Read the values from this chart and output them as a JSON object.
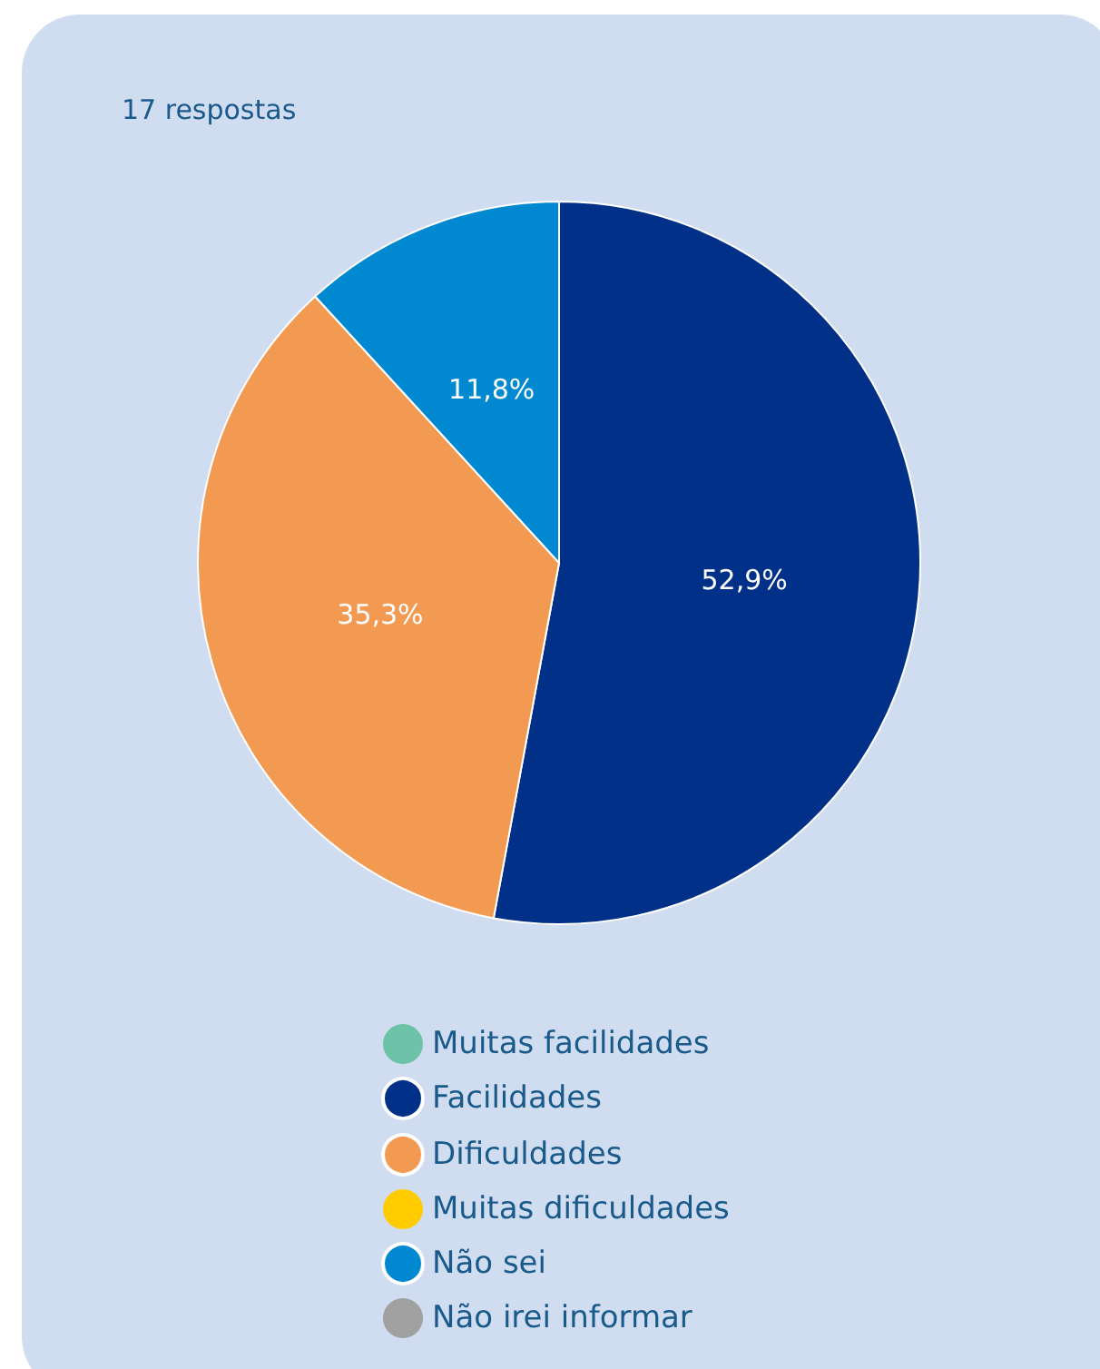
{
  "chart_data": {
    "type": "pie",
    "title": "17 respostas",
    "categories": [
      "Muitas facilidades",
      "Facilidades",
      "Dificuldades",
      "Muitas dificuldades",
      "Não sei",
      "Não irei informar"
    ],
    "values": [
      0,
      52.9,
      35.3,
      0,
      11.8,
      0
    ],
    "colors": [
      "#6cc3a8",
      "#003087",
      "#f39a52",
      "#ffcc00",
      "#0088d0",
      "#a0a0a0"
    ],
    "value_labels": [
      null,
      "52,9%",
      "35,3%",
      null,
      "11,8%",
      null
    ],
    "legend": "bottom"
  }
}
